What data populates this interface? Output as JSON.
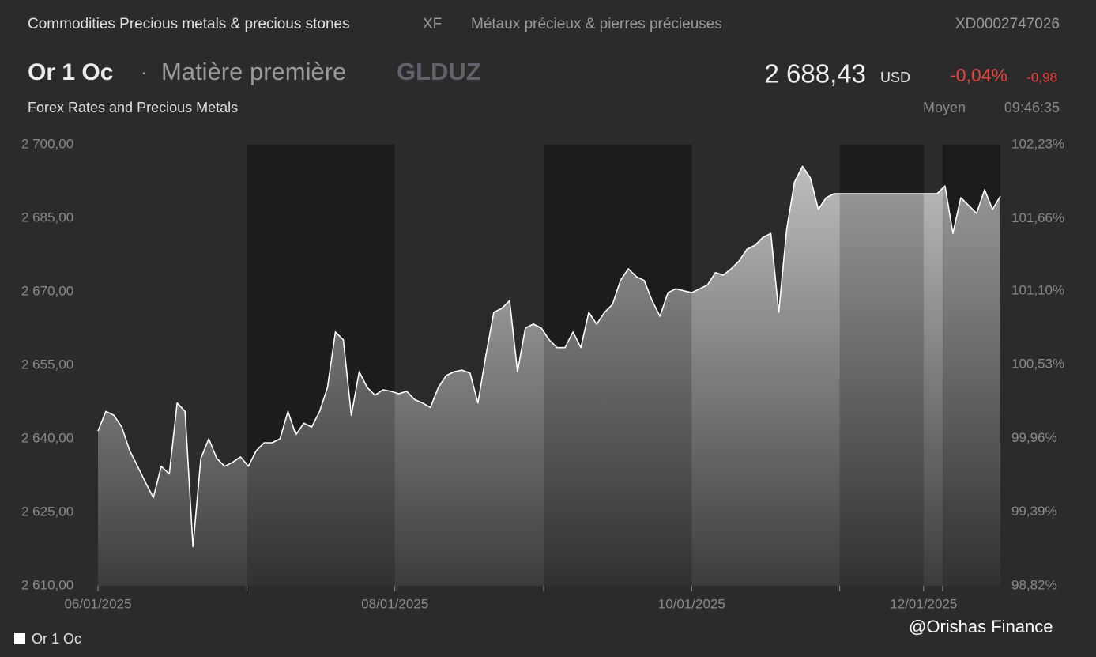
{
  "header": {
    "category": "Commodities Precious metals & precious stones",
    "exchange": "XF",
    "category_fr": "Métaux précieux & pierres précieuses",
    "isin": "XD0002747026",
    "name": "Or 1 Oc",
    "type_label": "Matière première",
    "ticker": "GLDUZ",
    "price": "2 688,43",
    "currency": "USD",
    "change_pct": "-0,04%",
    "change": "-0,98",
    "source": "Forex Rates and Precious Metals",
    "price_type": "Moyen",
    "time": "09:46:35"
  },
  "chart_data": {
    "type": "line",
    "series": [
      {
        "name": "Or 1 Oc",
        "color": "#ffffff",
        "values": [
          2641.6,
          2645.6,
          2644.8,
          2642.4,
          2637.6,
          2634.4,
          2631.1,
          2628,
          2634.4,
          2632.8,
          2647.3,
          2645.6,
          2618,
          2636,
          2640,
          2636,
          2634.4,
          2635.2,
          2636.3,
          2634.4,
          2637.6,
          2639.2,
          2639.2,
          2640,
          2645.6,
          2640.8,
          2643.2,
          2642.4,
          2645.6,
          2650.5,
          2661.8,
          2660.2,
          2644.8,
          2653.7,
          2650.5,
          2648.9,
          2650,
          2649.7,
          2649.2,
          2649.7,
          2648,
          2647.3,
          2646.4,
          2650.5,
          2652.9,
          2653.7,
          2654,
          2653.4,
          2647.3,
          2657,
          2665.8,
          2666.6,
          2668.2,
          2653.7,
          2662.6,
          2663.4,
          2662.6,
          2660.2,
          2658.6,
          2658.6,
          2661.8,
          2658.6,
          2665.8,
          2663.4,
          2665.8,
          2667.4,
          2672.3,
          2674.7,
          2673.1,
          2672.3,
          2668.2,
          2665,
          2669.8,
          2670.6,
          2670.2,
          2669.8,
          2670.6,
          2671.4,
          2673.9,
          2673.4,
          2674.7,
          2676.3,
          2678.7,
          2679.5,
          2681.1,
          2681.9,
          2665.8,
          2682.7,
          2692.4,
          2695.6,
          2693.2,
          2686.8,
          2689.2,
          2690,
          2690,
          2690,
          2690,
          2690,
          2690,
          2690,
          2690,
          2690,
          2690,
          2690,
          2690,
          2690,
          2690,
          2691.6,
          2681.9,
          2689.2,
          2687.6,
          2686,
          2690.8,
          2686.8,
          2689.5
        ]
      }
    ],
    "xlim": [
      0,
      114
    ],
    "xticks": [
      {
        "value": 0,
        "label": "06/01/2025"
      },
      {
        "value": 18.8,
        "label": null
      },
      {
        "value": 37.5,
        "label": "08/01/2025"
      },
      {
        "value": 56.3,
        "label": null
      },
      {
        "value": 75,
        "label": "10/01/2025"
      },
      {
        "value": 93.7,
        "label": null
      },
      {
        "value": 104.3,
        "label": "12/01/2025"
      },
      {
        "value": 106.7,
        "label": null
      }
    ],
    "ylim": [
      2610,
      2700
    ],
    "yticks": [
      {
        "value": 2610,
        "label": "2 610,00"
      },
      {
        "value": 2625,
        "label": "2 625,00"
      },
      {
        "value": 2640,
        "label": "2 640,00"
      },
      {
        "value": 2655,
        "label": "2 655,00"
      },
      {
        "value": 2670,
        "label": "2 670,00"
      },
      {
        "value": 2685,
        "label": "2 685,00"
      },
      {
        "value": 2700,
        "label": "2 700,00"
      }
    ],
    "y2lim": [
      98.82,
      102.23
    ],
    "y2ticks": [
      {
        "value": 98.82,
        "label": "98,82%"
      },
      {
        "value": 99.39,
        "label": "99,39%"
      },
      {
        "value": 99.96,
        "label": "99,96%"
      },
      {
        "value": 100.53,
        "label": "100,53%"
      },
      {
        "value": 101.1,
        "label": "101,10%"
      },
      {
        "value": 101.66,
        "label": "101,66%"
      },
      {
        "value": 102.23,
        "label": "102,23%"
      }
    ],
    "grid": false
  },
  "watermark": "@Orishas Finance"
}
